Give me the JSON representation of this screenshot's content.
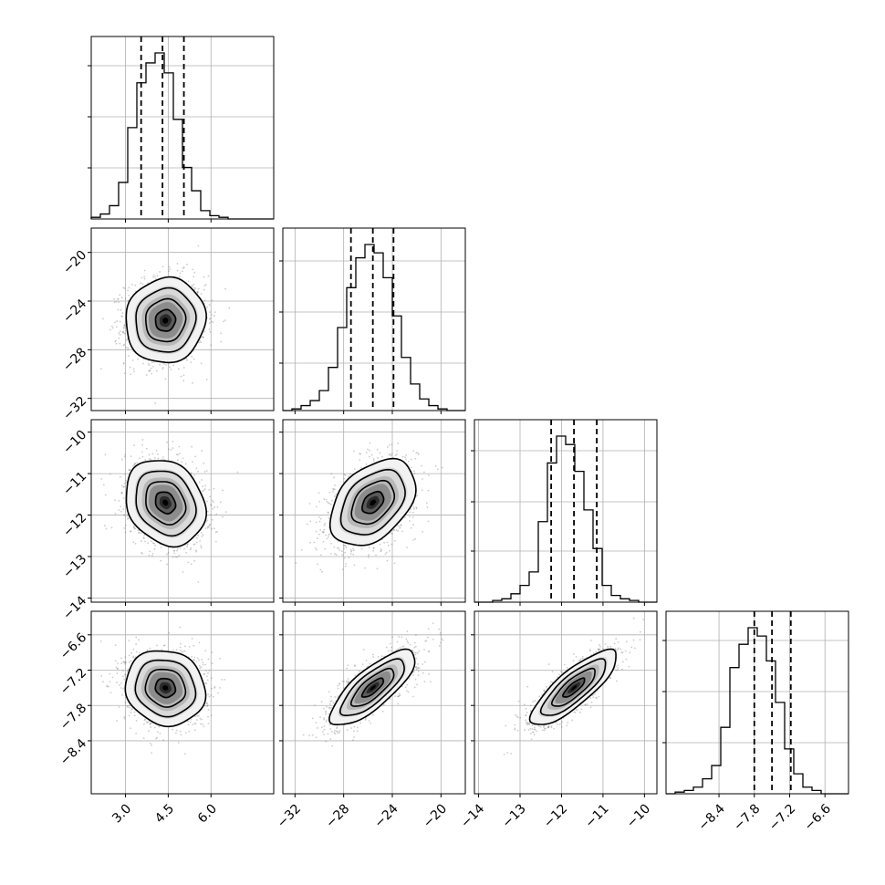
{
  "chart_data": {
    "type": "corner",
    "title": "",
    "parameters": [
      {
        "range": [
          1.8,
          8.2
        ],
        "ticks": [
          3.0,
          4.5,
          6.0
        ],
        "tick_labels": [
          "3.0",
          "4.5",
          "6.0"
        ],
        "quantiles": [
          3.55,
          4.3,
          5.05
        ],
        "hist_edges_start": 1.8,
        "hist_bin_width": 0.32,
        "hist_counts": [
          1,
          3,
          8,
          22,
          55,
          82,
          94,
          100,
          88,
          60,
          31,
          17,
          5,
          2,
          1,
          0,
          0,
          0,
          0,
          0
        ],
        "hist_grid_y": [
          0.28,
          0.56,
          0.84
        ]
      },
      {
        "range": [
          -33,
          -18
        ],
        "ticks": [
          -32,
          -28,
          -24,
          -20
        ],
        "tick_labels": [
          "−32",
          "−28",
          "−24",
          "−20"
        ],
        "quantiles": [
          -27.4,
          -25.6,
          -23.9
        ],
        "hist_edges_start": -33,
        "hist_bin_width": 0.75,
        "hist_counts": [
          0,
          1,
          3,
          6,
          12,
          26,
          50,
          74,
          92,
          100,
          95,
          80,
          57,
          32,
          16,
          7,
          3,
          1,
          0,
          0
        ],
        "hist_grid_y": [
          0.26,
          0.54,
          0.82
        ]
      },
      {
        "range": [
          -14.1,
          -9.7
        ],
        "ticks": [
          -14,
          -13,
          -12,
          -11,
          -10
        ],
        "tick_labels": [
          "−14",
          "−13",
          "−12",
          "−11",
          "−10"
        ],
        "quantiles": [
          -12.25,
          -11.7,
          -11.15
        ],
        "hist_edges_start": -14.1,
        "hist_bin_width": 0.22,
        "hist_counts": [
          0,
          0,
          1,
          2,
          5,
          10,
          18,
          48,
          83,
          99,
          94,
          78,
          55,
          32,
          10,
          4,
          2,
          1,
          0,
          0
        ],
        "hist_grid_y": [
          0.28,
          0.55,
          0.83
        ]
      },
      {
        "range": [
          -9.3,
          -6.2
        ],
        "ticks": [
          -8.4,
          -7.8,
          -7.2,
          -6.6
        ],
        "tick_labels": [
          "−8.4",
          "−7.8",
          "−7.2",
          "−6.6"
        ],
        "quantiles": [
          -7.8,
          -7.5,
          -7.18
        ],
        "hist_edges_start": -9.3,
        "hist_bin_width": 0.155,
        "hist_counts": [
          0,
          1,
          2,
          4,
          9,
          17,
          40,
          76,
          90,
          100,
          95,
          80,
          55,
          27,
          12,
          4,
          2,
          0,
          0,
          0
        ],
        "hist_grid_y": [
          0.28,
          0.56,
          0.84
        ]
      }
    ],
    "y_axis_ticks": {
      "1": {
        "ticks": [
          -32,
          -28,
          -24,
          -20
        ],
        "tick_labels": [
          "−32",
          "−28",
          "−24",
          "−20"
        ]
      },
      "2": {
        "ticks": [
          -14,
          -13,
          -12,
          -11,
          -10
        ],
        "tick_labels": [
          "−14",
          "−13",
          "−12",
          "−11",
          "−10"
        ]
      },
      "3": {
        "ticks": [
          -8.4,
          -7.8,
          -7.2,
          -6.6
        ],
        "tick_labels": [
          "−8.4",
          "−7.8",
          "−7.2",
          "−6.6"
        ]
      }
    },
    "pairs": [
      {
        "row": 1,
        "col": 0,
        "center": [
          4.4,
          -25.6
        ],
        "sigma": [
          0.7,
          1.75
        ],
        "corr": 0.05,
        "contour_levels_sigma": [
          0.5,
          1.0,
          1.5,
          2.0
        ]
      },
      {
        "row": 2,
        "col": 0,
        "center": [
          4.4,
          -11.7
        ],
        "sigma": [
          0.7,
          0.52
        ],
        "corr": -0.2,
        "contour_levels_sigma": [
          0.5,
          1.0,
          1.5,
          2.0
        ]
      },
      {
        "row": 2,
        "col": 1,
        "center": [
          -25.6,
          -11.7
        ],
        "sigma": [
          1.75,
          0.52
        ],
        "corr": 0.4,
        "contour_levels_sigma": [
          0.5,
          1.0,
          1.5,
          2.0
        ]
      },
      {
        "row": 3,
        "col": 0,
        "center": [
          4.4,
          -7.5
        ],
        "sigma": [
          0.7,
          0.32
        ],
        "corr": -0.1,
        "contour_levels_sigma": [
          0.5,
          1.0,
          1.5,
          2.0
        ]
      },
      {
        "row": 3,
        "col": 1,
        "center": [
          -25.6,
          -7.5
        ],
        "sigma": [
          1.75,
          0.32
        ],
        "corr": 0.78,
        "contour_levels_sigma": [
          0.5,
          1.0,
          1.5,
          2.0
        ]
      },
      {
        "row": 3,
        "col": 2,
        "center": [
          -11.7,
          -7.5
        ],
        "sigma": [
          0.52,
          0.32
        ],
        "corr": 0.82,
        "contour_levels_sigma": [
          0.5,
          1.0,
          1.5,
          2.0
        ]
      }
    ],
    "grid": true,
    "legend": "none"
  }
}
